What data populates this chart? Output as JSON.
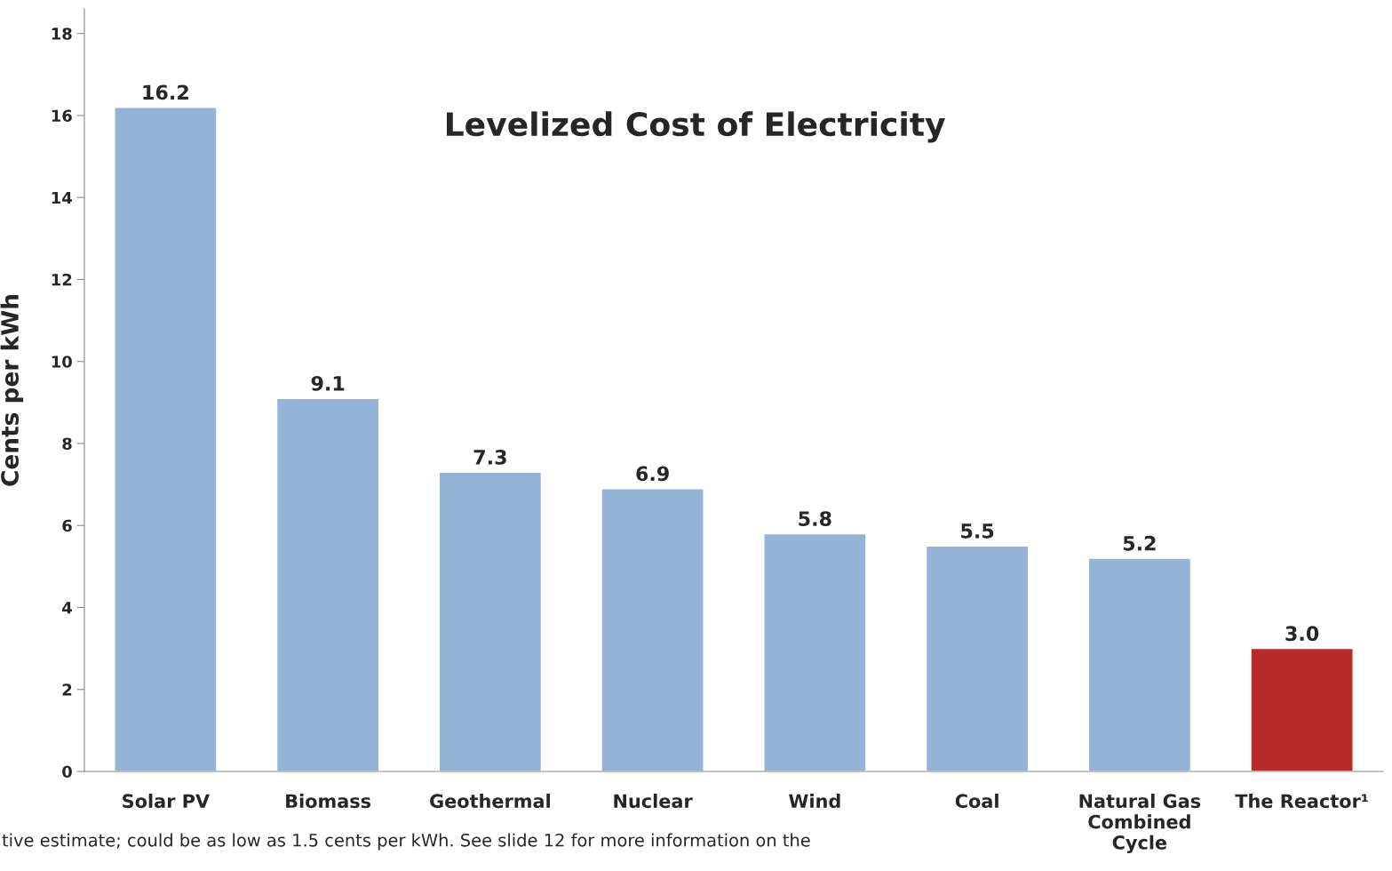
{
  "chart_data": {
    "type": "bar",
    "title": "Levelized Cost of Electricity",
    "ylabel": "Cents per kWh",
    "categories": [
      "Solar PV",
      "Biomass",
      "Geothermal",
      "Nuclear",
      "Wind",
      "Coal",
      "Natural Gas\nCombined\nCycle",
      "The Reactor¹"
    ],
    "values": [
      16.2,
      9.1,
      7.3,
      6.9,
      5.8,
      5.5,
      5.2,
      3.0
    ],
    "value_labels": [
      "16.2",
      "9.1",
      "7.3",
      "6.9",
      "5.8",
      "5.5",
      "5.2",
      "3.0"
    ],
    "colors": [
      "#95b3d7",
      "#95b3d7",
      "#95b3d7",
      "#95b3d7",
      "#95b3d7",
      "#95b3d7",
      "#95b3d7",
      "#b92a2a"
    ],
    "ylim": [
      0,
      18.6
    ],
    "yticks": [
      0,
      2,
      4,
      6,
      8,
      10,
      12,
      14,
      16,
      18
    ],
    "grid": false,
    "legend": false,
    "annotations": [
      "tive estimate; could be as low as 1.5 cents per kWh. See slide 12 for more information on the"
    ]
  }
}
